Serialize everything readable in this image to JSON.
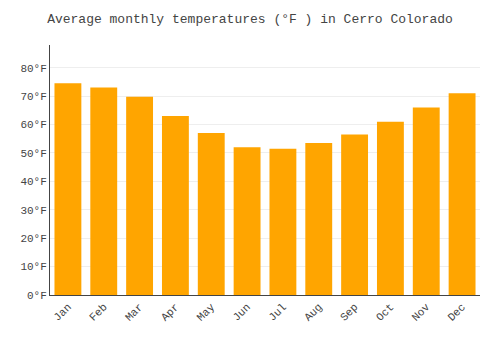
{
  "chart_data": {
    "type": "bar",
    "title": "Average monthly temperatures (°F ) in Cerro Colorado",
    "categories": [
      "Jan",
      "Feb",
      "Mar",
      "Apr",
      "May",
      "Jun",
      "Jul",
      "Aug",
      "Sep",
      "Oct",
      "Nov",
      "Dec"
    ],
    "values": [
      74.5,
      73.0,
      69.8,
      63.0,
      57.0,
      52.0,
      51.5,
      53.5,
      56.5,
      61.0,
      66.0,
      71.0
    ],
    "color": "#FFA500",
    "ylim": [
      0,
      88
    ],
    "yticks": [
      {
        "value": 0,
        "label": "0°F"
      },
      {
        "value": 10,
        "label": "10°F"
      },
      {
        "value": 20,
        "label": "20°F"
      },
      {
        "value": 30,
        "label": "30°F"
      },
      {
        "value": 40,
        "label": "40°F"
      },
      {
        "value": 50,
        "label": "50°F"
      },
      {
        "value": 60,
        "label": "60°F"
      },
      {
        "value": 70,
        "label": "70°F"
      },
      {
        "value": 80,
        "label": "80°F"
      }
    ],
    "grid": true
  }
}
